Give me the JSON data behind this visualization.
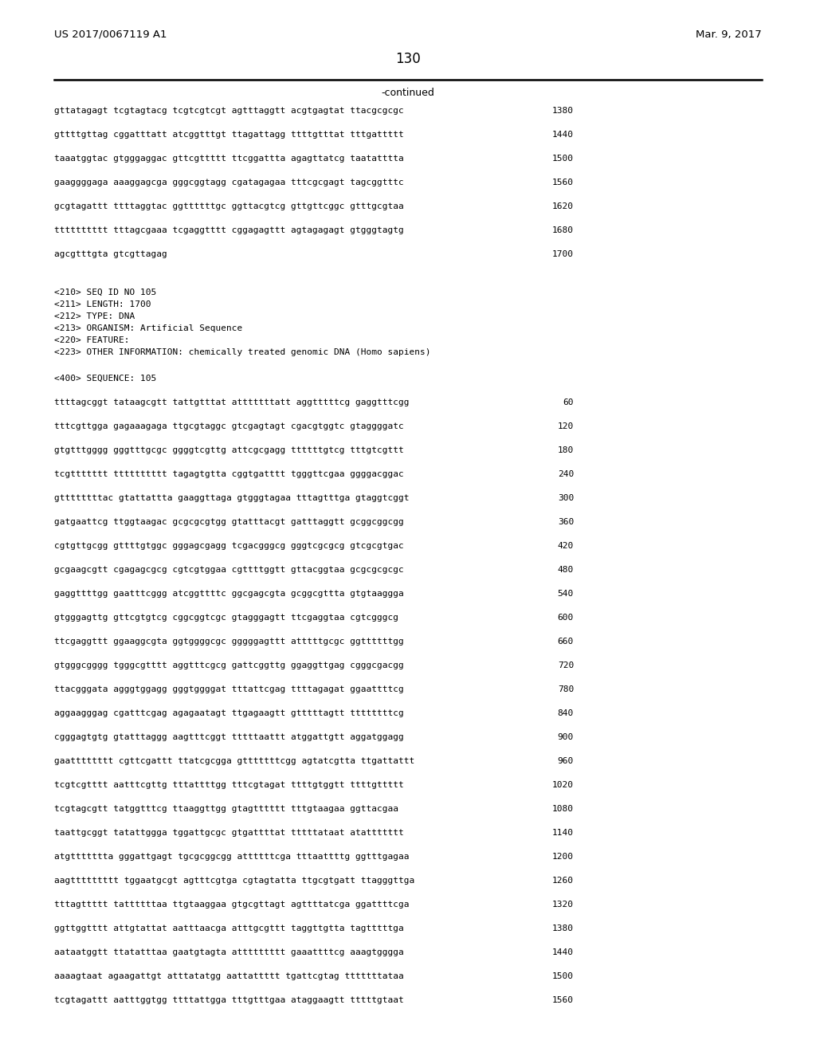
{
  "header_left": "US 2017/0067119 A1",
  "header_right": "Mar. 9, 2017",
  "page_number": "130",
  "continued_label": "-continued",
  "background_color": "#ffffff",
  "text_color": "#000000",
  "sequence_lines_top": [
    {
      "seq": "gttatagagt tcgtagtacg tcgtcgtcgt agtttaggtt acgtgagtat ttacgcgcgc",
      "num": "1380"
    },
    {
      "seq": "gttttgttag cggatttatt atcggtttgt ttagattagg ttttgtttat tttgattttt",
      "num": "1440"
    },
    {
      "seq": "taaatggtac gtgggaggac gttcgttttt ttcggattta agagttatcg taatatttta",
      "num": "1500"
    },
    {
      "seq": "gaaggggaga aaaggagcga gggcggtagg cgatagagaa tttcgcgagt tagcggtttc",
      "num": "1560"
    },
    {
      "seq": "gcgtagattt ttttaggtac ggttttttgc ggttacgtcg gttgttcggc gtttgcgtaa",
      "num": "1620"
    },
    {
      "seq": "tttttttttt tttagcgaaa tcgaggtttt cggagagttt agtagagagt gtgggtagtg",
      "num": "1680"
    },
    {
      "seq": "agcgtttgta gtcgttagag",
      "num": "1700"
    }
  ],
  "metadata_lines": [
    "<210> SEQ ID NO 105",
    "<211> LENGTH: 1700",
    "<212> TYPE: DNA",
    "<213> ORGANISM: Artificial Sequence",
    "<220> FEATURE:",
    "<223> OTHER INFORMATION: chemically treated genomic DNA (Homo sapiens)"
  ],
  "sequence_label": "<400> SEQUENCE: 105",
  "sequence_lines_bottom": [
    {
      "seq": "ttttagcggt tataagcgtt tattgtttat atttttttatt aggtttttcg gaggtttcgg",
      "num": "60"
    },
    {
      "seq": "tttcgttgga gagaaagaga ttgcgtaggc gtcgagtagt cgacgtggtc gtaggggatc",
      "num": "120"
    },
    {
      "seq": "gtgtttgggg gggtttgcgc ggggtcgttg attcgcgagg ttttttgtcg tttgtcgttt",
      "num": "180"
    },
    {
      "seq": "tcgttttttt tttttttttt tagagtgtta cggtgatttt tgggttcgaa ggggacggac",
      "num": "240"
    },
    {
      "seq": "gttttttttac gtattattta gaaggttaga gtgggtagaa tttagtttga gtaggtcggt",
      "num": "300"
    },
    {
      "seq": "gatgaattcg ttggtaagac gcgcgcgtgg gtatttacgt gatttaggtt gcggcggcgg",
      "num": "360"
    },
    {
      "seq": "cgtgttgcgg gttttgtggc gggagcgagg tcgacgggcg gggtcgcgcg gtcgcgtgac",
      "num": "420"
    },
    {
      "seq": "gcgaagcgtt cgagagcgcg cgtcgtggaa cgttttggtt gttacggtaa gcgcgcgcgc",
      "num": "480"
    },
    {
      "seq": "gaggttttgg gaatttcggg atcggttttc ggcgagcgta gcggcgttta gtgtaaggga",
      "num": "540"
    },
    {
      "seq": "gtgggagttg gttcgtgtcg cggcggtcgc gtagggagtt ttcgaggtaa cgtcgggcg",
      "num": "600"
    },
    {
      "seq": "ttcgaggttt ggaaggcgta ggtggggcgc gggggagttt atttttgcgc ggttttttgg",
      "num": "660"
    },
    {
      "seq": "gtgggcgggg tgggcgtttt aggtttcgcg gattcggttg ggaggttgag cgggcgacgg",
      "num": "720"
    },
    {
      "seq": "ttacgggata agggtggagg gggtggggat tttattcgag ttttagagat ggaattttcg",
      "num": "780"
    },
    {
      "seq": "aggaagggag cgatttcgag agagaatagt ttgagaagtt gtttttagtt ttttttttcg",
      "num": "840"
    },
    {
      "seq": "cgggagtgtg gtatttaggg aagtttcggt tttttaattt atggattgtt aggatggagg",
      "num": "900"
    },
    {
      "seq": "gaatttttttt cgttcgattt ttatcgcgga gtttttttcgg agtatcgtta ttgattattt",
      "num": "960"
    },
    {
      "seq": "tcgtcgtttt aatttcgttg tttattttgg tttcgtagat ttttgtggtt ttttgttttt",
      "num": "1020"
    },
    {
      "seq": "tcgtagcgtt tatggtttcg ttaaggttgg gtagtttttt tttgtaagaa ggttacgaa",
      "num": "1080"
    },
    {
      "seq": "taattgcggt tatattggga tggattgcgc gtgattttat tttttataat atattttttt",
      "num": "1140"
    },
    {
      "seq": "atgttttttta gggattgagt tgcgcggcgg attttttcga tttaattttg ggtttgagaa",
      "num": "1200"
    },
    {
      "seq": "aagttttttttt tggaatgcgt agtttcgtga cgtagtatta ttgcgtgatt ttagggttga",
      "num": "1260"
    },
    {
      "seq": "tttagttttt tattttttaa ttgtaaggaa gtgcgttagt agttttatcga ggattttcga",
      "num": "1320"
    },
    {
      "seq": "ggttggtttt attgtattat aatttaacga atttgcgttt taggttgtta tagtttttga",
      "num": "1380"
    },
    {
      "seq": "aataatggtt ttatatttaa gaatgtagta attttttttt gaaattttcg aaagtgggga",
      "num": "1440"
    },
    {
      "seq": "aaaagtaat agaagattgt atttatatgg aattattttt tgattcgtag tttttttataa",
      "num": "1500"
    },
    {
      "seq": "tcgtagattt aatttggtgg ttttattgga tttgtttgaa ataggaagtt tttttgtaat",
      "num": "1560"
    }
  ]
}
